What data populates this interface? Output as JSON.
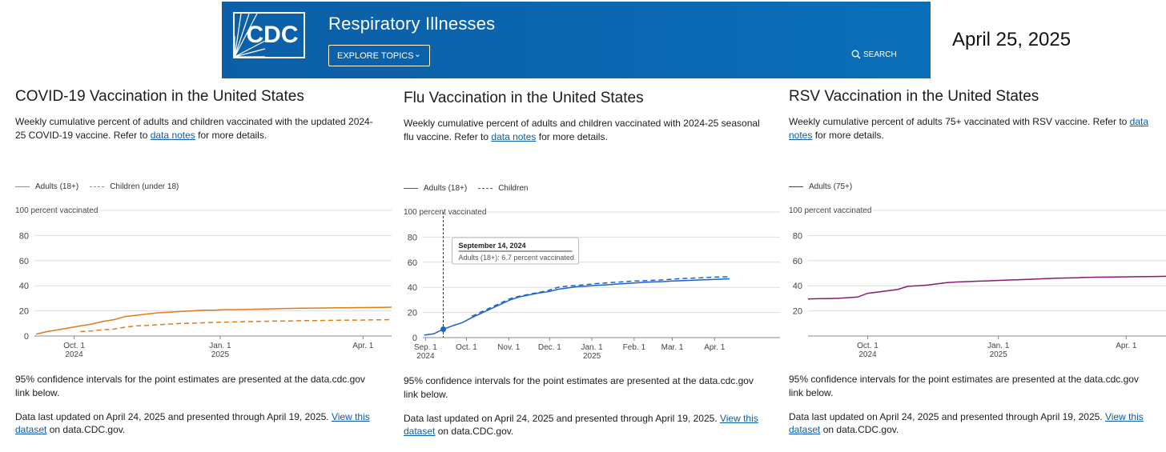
{
  "header": {
    "logo_text": "CDC",
    "site_title": "Respiratory Illnesses",
    "explore_label": "EXPLORE TOPICS",
    "search_label": "SEARCH"
  },
  "date_label": "April 25, 2025",
  "colors": {
    "banner": "#0b66b0",
    "covid": "#e07b1c",
    "flu": "#1d62c8",
    "rsv": "#8b1a6b"
  },
  "panels": {
    "covid": {
      "title": "COVID-19 Vaccination in the United States",
      "desc_pre": "Weekly cumulative percent of adults and children vaccinated with the updated 2024-25 COVID-19 vaccine. Refer to ",
      "desc_link": "data notes",
      "desc_post": " for more details.",
      "ci_note": "95% confidence intervals for the point estimates are presented at the data.cdc.gov link below.",
      "updated_pre": "Data last updated on April 24, 2025 and presented through April 19, 2025. ",
      "updated_link": "View this dataset",
      "updated_post": " on data.CDC.gov."
    },
    "flu": {
      "title": "Flu Vaccination in the United States",
      "desc_pre": "Weekly cumulative percent of adults and children vaccinated with 2024-25 seasonal flu vaccine. Refer to ",
      "desc_link": "data notes",
      "desc_post": " for more details.",
      "ci_note": "95% confidence intervals for the point estimates are presented at the data.cdc.gov link below.",
      "updated_pre": "Data last updated on April 24, 2025 and presented through April 19, 2025. ",
      "updated_link": "View this dataset",
      "updated_post": " on data.CDC.gov."
    },
    "rsv": {
      "title": "RSV Vaccination in the United States",
      "desc_pre": "Weekly cumulative percent of adults 75+ vaccinated with RSV vaccine. Refer to ",
      "desc_link": "data notes",
      "desc_post": " for more details.",
      "ci_note": "95% confidence intervals for the point estimates are presented at the data.cdc.gov link below.",
      "updated_pre": "Data last updated on April 24, 2025 and presented through April 19, 2025. ",
      "updated_link": "View this dataset",
      "updated_post": " on data.CDC.gov."
    }
  },
  "chart_data": [
    {
      "id": "covid",
      "type": "line",
      "title": "COVID-19 Vaccination in the United States",
      "ylabel": "100 percent vaccinated",
      "ylim": [
        0,
        100
      ],
      "xlim": [
        -25,
        200
      ],
      "y_ticks": [
        "0",
        "20",
        "40",
        "60",
        "80"
      ],
      "x_ticks": [
        {
          "day": 0,
          "line1": "Oct. 1",
          "line2": "2024"
        },
        {
          "day": 92,
          "line1": "Jan. 1",
          "line2": "2025"
        },
        {
          "day": 182,
          "line1": "Apr. 1",
          "line2": ""
        }
      ],
      "series": [
        {
          "name": "Adults (18+)",
          "dash": false,
          "x": [
            -24,
            -17,
            -10,
            -3,
            4,
            11,
            18,
            25,
            32,
            39,
            46,
            53,
            60,
            67,
            74,
            81,
            88,
            95,
            102,
            109,
            116,
            123,
            130,
            137,
            144,
            151,
            158,
            165,
            172,
            179,
            186,
            193,
            200
          ],
          "y": [
            1.5,
            3.5,
            5,
            6.5,
            8,
            9.5,
            11.5,
            13,
            15.5,
            16.5,
            17.5,
            18.5,
            19,
            19.5,
            20,
            20.5,
            20.5,
            21,
            21,
            21.2,
            21.4,
            21.6,
            21.8,
            22,
            22.1,
            22.2,
            22.3,
            22.4,
            22.5,
            22.6,
            22.7,
            22.8,
            22.9
          ]
        },
        {
          "name": "Children (under 18)",
          "dash": true,
          "x": [
            4,
            11,
            18,
            25,
            32,
            39,
            46,
            53,
            60,
            67,
            74,
            81,
            88,
            95,
            102,
            109,
            116,
            123,
            130,
            137,
            144,
            151,
            158,
            165,
            172,
            179,
            186,
            193,
            200
          ],
          "y": [
            3.5,
            4,
            5,
            5.5,
            7,
            8,
            8.5,
            9,
            9.5,
            10,
            10.2,
            10.5,
            10.8,
            11,
            11.2,
            11.4,
            11.6,
            11.8,
            12,
            12,
            12.2,
            12.2,
            12.4,
            12.5,
            12.6,
            12.7,
            12.8,
            12.9,
            13
          ]
        }
      ]
    },
    {
      "id": "flu",
      "type": "line",
      "title": "Flu Vaccination in the United States",
      "ylabel": "100 percent vaccinated",
      "ylim": [
        0,
        100
      ],
      "xlim": [
        -32,
        230
      ],
      "y_ticks": [
        "0",
        "20",
        "40",
        "60",
        "80"
      ],
      "x_ticks": [
        {
          "day": -30,
          "line1": "Sep. 1",
          "line2": "2024"
        },
        {
          "day": 0,
          "line1": "Oct. 1",
          "line2": ""
        },
        {
          "day": 31,
          "line1": "Nov. 1",
          "line2": ""
        },
        {
          "day": 61,
          "line1": "Dec. 1",
          "line2": ""
        },
        {
          "day": 92,
          "line1": "Jan. 1",
          "line2": "2025"
        },
        {
          "day": 123,
          "line1": "Feb. 1",
          "line2": ""
        },
        {
          "day": 151,
          "line1": "Mar. 1",
          "line2": ""
        },
        {
          "day": 182,
          "line1": "Apr. 1",
          "line2": ""
        }
      ],
      "tooltip": {
        "date": "September 14, 2024",
        "text": "Adults (18+): 6.7 percent vaccinated",
        "day": -17,
        "value": 6.7
      },
      "series": [
        {
          "name": "Adults (18+)",
          "dash": false,
          "x": [
            -31,
            -24,
            -17,
            -10,
            -3,
            4,
            11,
            18,
            25,
            32,
            39,
            46,
            53,
            60,
            67,
            74,
            81,
            88,
            95,
            102,
            109,
            116,
            123,
            130,
            137,
            144,
            151,
            158,
            165,
            172,
            179,
            186,
            193
          ],
          "y": [
            2,
            3,
            6.7,
            9.5,
            12,
            16,
            19.5,
            23,
            26.5,
            30,
            32.5,
            34,
            35.5,
            36.5,
            38.5,
            39.5,
            40.5,
            41,
            41.5,
            42,
            42.5,
            43,
            43.5,
            44,
            44.3,
            44.6,
            45,
            45.3,
            45.6,
            45.9,
            46.2,
            46.5,
            46.8
          ]
        },
        {
          "name": "Children",
          "dash": true,
          "x": [
            4,
            11,
            18,
            25,
            32,
            39,
            46,
            53,
            60,
            67,
            74,
            81,
            88,
            95,
            102,
            109,
            116,
            123,
            130,
            137,
            144,
            151,
            158,
            165,
            172,
            179,
            186,
            193
          ],
          "y": [
            17,
            20.5,
            24,
            27.5,
            31,
            33,
            34.5,
            36,
            37.5,
            40,
            41,
            41.5,
            42.2,
            43,
            43.5,
            44,
            44.5,
            45,
            45.3,
            45.6,
            46,
            46.5,
            47,
            47.3,
            47.6,
            48,
            48.3,
            48.5
          ]
        }
      ]
    },
    {
      "id": "rsv",
      "type": "line",
      "title": "RSV Vaccination in the United States",
      "ylabel": "100 percent vaccinated",
      "ylim": [
        0,
        100
      ],
      "xlim": [
        -42,
        210
      ],
      "y_ticks": [
        "20",
        "40",
        "60",
        "80"
      ],
      "x_ticks": [
        {
          "day": 0,
          "line1": "Oct. 1",
          "line2": "2024"
        },
        {
          "day": 92,
          "line1": "Jan. 1",
          "line2": "2025"
        },
        {
          "day": 182,
          "line1": "Apr. 1",
          "line2": ""
        }
      ],
      "series": [
        {
          "name": "Adults (75+)",
          "dash": false,
          "x": [
            -42,
            -35,
            -28,
            -21,
            -14,
            -7,
            0,
            7,
            14,
            21,
            28,
            35,
            42,
            49,
            56,
            63,
            70,
            77,
            84,
            91,
            98,
            105,
            112,
            119,
            126,
            133,
            140,
            147,
            154,
            161,
            168,
            175,
            182,
            189,
            196,
            203,
            210
          ],
          "y": [
            29.5,
            29.7,
            29.8,
            30,
            30.5,
            31,
            34,
            35,
            36,
            37,
            39.5,
            40,
            40.5,
            41.5,
            42.5,
            43,
            43.3,
            43.6,
            43.9,
            44.2,
            44.5,
            44.8,
            45.1,
            45.4,
            45.7,
            46,
            46.2,
            46.4,
            46.6,
            46.8,
            46.9,
            47,
            47.1,
            47.2,
            47.3,
            47.4,
            47.5
          ]
        }
      ]
    }
  ]
}
